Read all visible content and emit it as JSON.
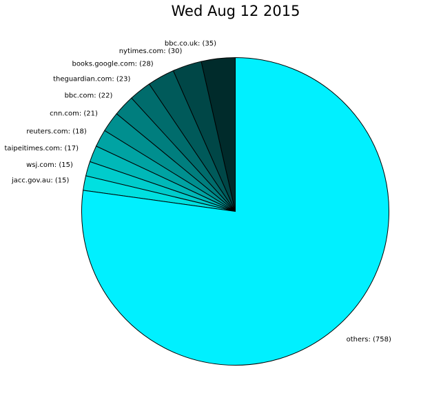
{
  "chart_data": {
    "type": "pie",
    "title": "Wed Aug 12 2015",
    "start_angle_deg": 90,
    "direction": "counterclockwise",
    "slices": [
      {
        "label": "bbc.co.uk: (35)",
        "name": "bbc.co.uk",
        "value": 35,
        "color": "#002b2b"
      },
      {
        "label": "nytimes.com: (30)",
        "name": "nytimes.com",
        "value": 30,
        "color": "#004747"
      },
      {
        "label": "books.google.com: (28)",
        "name": "books.google.com",
        "value": 28,
        "color": "#005a5a"
      },
      {
        "label": "theguardian.com: (23)",
        "name": "theguardian.com",
        "value": 23,
        "color": "#006c6c"
      },
      {
        "label": "bbc.com: (22)",
        "name": "bbc.com",
        "value": 22,
        "color": "#007e7e"
      },
      {
        "label": "cnn.com: (21)",
        "name": "cnn.com",
        "value": 21,
        "color": "#008f8f"
      },
      {
        "label": "reuters.com: (18)",
        "name": "reuters.com",
        "value": 18,
        "color": "#00a3a3"
      },
      {
        "label": "taipeitimes.com: (17)",
        "name": "taipeitimes.com",
        "value": 17,
        "color": "#00b8b8"
      },
      {
        "label": "wsj.com: (15)",
        "name": "wsj.com",
        "value": 15,
        "color": "#00cccc"
      },
      {
        "label": "jacc.gov.au: (15)",
        "name": "jacc.gov.au",
        "value": 15,
        "color": "#00e0e0"
      },
      {
        "label": "others: (758)",
        "name": "others",
        "value": 758,
        "color": "#00f0ff"
      }
    ]
  }
}
